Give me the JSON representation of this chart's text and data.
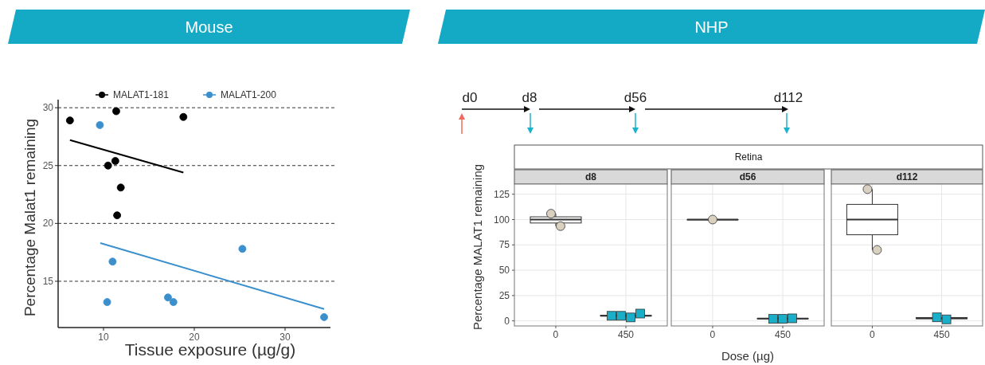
{
  "chart_data": [
    {
      "type": "scatter",
      "title": "Mouse",
      "xlabel": "Tissue exposure (µg/g)",
      "ylabel": "Percentage Malat1 remaining",
      "xlim": [
        5,
        35
      ],
      "ylim": [
        11,
        30.7
      ],
      "xticks": [
        10,
        20,
        30
      ],
      "yticks": [
        15,
        20,
        25,
        30
      ],
      "grid": "y",
      "legend": "top",
      "series": [
        {
          "name": "MALAT1-181",
          "marker": "circle",
          "color": "#000000",
          "x": [
            6.3,
            11.4,
            18.8,
            10.5,
            11.3,
            11.9,
            11.5
          ],
          "values": [
            28.9,
            29.7,
            29.2,
            25.0,
            25.4,
            23.1,
            20.7
          ]
        },
        {
          "name": "MALAT1-200",
          "marker": "circle",
          "color": "#3a8fcc",
          "x": [
            9.6,
            11.0,
            10.4,
            17.1,
            17.7,
            25.3,
            34.3
          ],
          "values": [
            28.5,
            16.7,
            13.2,
            13.6,
            13.2,
            17.8,
            11.9
          ]
        },
        {
          "type": "line",
          "color": "#000000",
          "x": [
            6.3,
            18.8
          ],
          "values": [
            27.2,
            24.4
          ]
        },
        {
          "type": "line",
          "color": "#3a8fcc",
          "x": [
            9.65,
            34.3
          ],
          "values": [
            18.3,
            12.6
          ]
        }
      ]
    },
    {
      "type": "other",
      "title": "NHP",
      "subtitle": "Retina",
      "annotations": [
        "d0",
        "d8",
        "d56",
        "d112"
      ]
    },
    {
      "type": "box",
      "title": "d8",
      "categories": [
        "0",
        "450"
      ],
      "ylabel": "Percentage MALAT1 remaining",
      "ylim": [
        -5,
        135
      ],
      "yticks": [
        0,
        25,
        50,
        75,
        100,
        125
      ],
      "grid": true,
      "boxes": [
        {
          "low": 93.5,
          "q1": 96.6,
          "median": 100,
          "q3": 102.7,
          "high": 105.8
        },
        {
          "low": 3.4,
          "q1": 4.8,
          "median": 5,
          "q3": 5.5,
          "high": 7.2
        }
      ],
      "series": [
        {
          "type": "scatter",
          "marker": "circle",
          "color": "#d9d0bf",
          "x": [
            "0",
            "0"
          ],
          "values": [
            105.8,
            93.5
          ]
        },
        {
          "type": "scatter",
          "marker": "square",
          "color": "#1aaec8",
          "x": [
            "450",
            "450",
            "450",
            "450"
          ],
          "values": [
            5,
            5,
            3.4,
            7.2
          ]
        }
      ]
    },
    {
      "type": "box",
      "title": "d56",
      "categories": [
        "0",
        "450"
      ],
      "xlabel": "Dose (µg)",
      "ylim": [
        -5,
        135
      ],
      "yticks": [
        0,
        25,
        50,
        75,
        100,
        125
      ],
      "grid": true,
      "tick_labels": "x",
      "boxes": [
        {
          "low": 100,
          "q1": 100,
          "median": 100,
          "q3": 100,
          "high": 100
        },
        {
          "low": 2,
          "q1": 2,
          "median": 2.2,
          "q3": 2.5,
          "high": 2.5
        }
      ],
      "series": [
        {
          "type": "scatter",
          "marker": "circle",
          "color": "#d9d0bf",
          "x": [
            "0"
          ],
          "values": [
            100
          ]
        },
        {
          "type": "scatter",
          "marker": "square",
          "color": "#1aaec8",
          "x": [
            "450",
            "450",
            "450"
          ],
          "values": [
            2,
            2,
            2.5
          ]
        }
      ]
    },
    {
      "type": "box",
      "title": "d112",
      "categories": [
        "0",
        "450"
      ],
      "ylim": [
        -5,
        135
      ],
      "yticks": [
        0,
        25,
        50,
        75,
        100,
        125
      ],
      "grid": true,
      "tick_labels": "x",
      "boxes": [
        {
          "low": 70,
          "q1": 85,
          "median": 100,
          "q3": 115,
          "high": 130
        },
        {
          "low": 1.5,
          "q1": 2,
          "median": 2.8,
          "q3": 3.3,
          "high": 3.5
        }
      ],
      "series": [
        {
          "type": "scatter",
          "marker": "circle",
          "color": "#d9d0bf",
          "x": [
            "0",
            "0"
          ],
          "values": [
            130,
            70
          ]
        },
        {
          "type": "scatter",
          "marker": "square",
          "color": "#1aaec8",
          "x": [
            "450",
            "450"
          ],
          "values": [
            3.5,
            1.5
          ]
        }
      ]
    }
  ]
}
